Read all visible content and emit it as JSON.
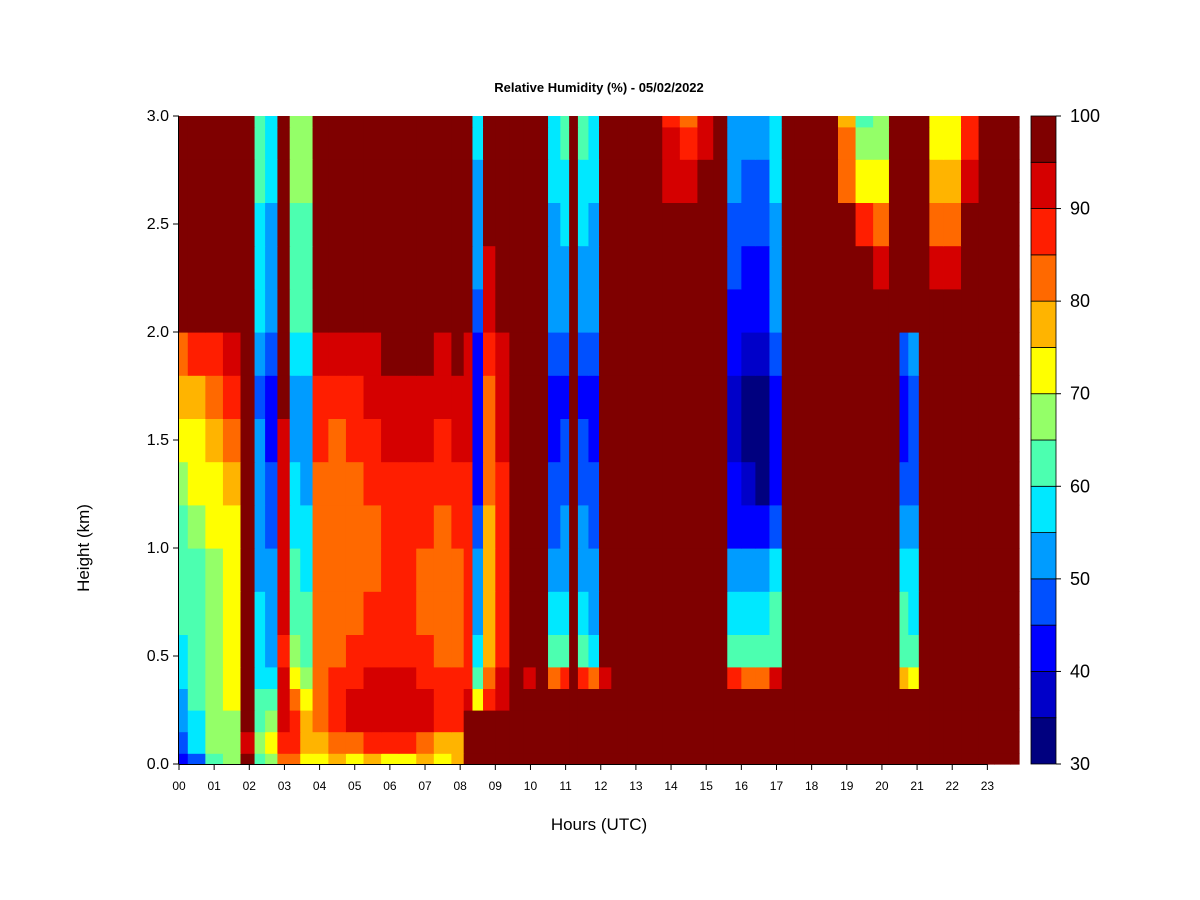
{
  "chart_data": {
    "type": "heatmap",
    "title": "Relative Humidity (%) - 05/02/2022",
    "xlabel": "Hours (UTC)",
    "ylabel": "Height (km)",
    "xlim": [
      0,
      23.9
    ],
    "ylim": [
      0,
      3.0
    ],
    "x_ticks": [
      0,
      1,
      2,
      3,
      4,
      5,
      6,
      7,
      8,
      9,
      10,
      11,
      12,
      13,
      14,
      15,
      16,
      17,
      18,
      19,
      20,
      21,
      22,
      23
    ],
    "x_tick_labels": [
      "00",
      "01",
      "02",
      "03",
      "04",
      "05",
      "06",
      "07",
      "08",
      "09",
      "10",
      "11",
      "12",
      "13",
      "14",
      "15",
      "16",
      "17",
      "18",
      "19",
      "20",
      "21",
      "22",
      "23"
    ],
    "y_ticks": [
      0.0,
      0.5,
      1.0,
      1.5,
      2.0,
      2.5,
      3.0
    ],
    "y_tick_labels": [
      "0.0",
      "0.5",
      "1.0",
      "1.5",
      "2.0",
      "2.5",
      "3.0"
    ],
    "grid": false,
    "colorbar": {
      "position": "right",
      "levels": [
        30,
        35,
        40,
        45,
        50,
        55,
        60,
        65,
        70,
        75,
        80,
        85,
        90,
        95,
        100
      ],
      "tick_values": [
        30,
        40,
        50,
        60,
        70,
        80,
        90,
        100
      ],
      "tick_labels": [
        "30",
        "40",
        "50",
        "60",
        "70",
        "80",
        "90",
        "100"
      ],
      "colors": [
        "#00007f",
        "#0000c9",
        "#0000ff",
        "#0050ff",
        "#009cff",
        "#00e8ff",
        "#4cffb0",
        "#94ff68",
        "#ffff00",
        "#ffb400",
        "#ff6900",
        "#ff1e00",
        "#d50000",
        "#7f0000"
      ]
    },
    "x_hours": [
      0.0,
      0.5,
      1.0,
      1.5,
      2.0,
      2.3,
      2.6,
      3.0,
      3.3,
      3.6,
      4.0,
      4.5,
      5.0,
      5.5,
      6.0,
      6.5,
      7.0,
      7.5,
      8.0,
      8.2,
      8.5,
      8.8,
      9.2,
      9.6,
      10.0,
      10.3,
      10.7,
      11.0,
      11.2,
      11.5,
      11.8,
      12.1,
      12.5,
      13.0,
      13.5,
      14.0,
      14.5,
      15.0,
      15.4,
      15.8,
      16.2,
      16.6,
      17.0,
      17.3,
      17.7,
      18.0,
      18.5,
      19.0,
      19.5,
      20.0,
      20.4,
      20.6,
      20.9,
      21.2,
      21.5,
      22.0,
      22.5,
      23.0,
      23.4,
      23.9
    ],
    "heights_km": [
      0.0,
      0.1,
      0.2,
      0.3,
      0.4,
      0.5,
      0.7,
      0.9,
      1.1,
      1.3,
      1.5,
      1.7,
      1.9,
      2.1,
      2.3,
      2.5,
      2.7,
      2.9,
      3.0
    ],
    "rh_percent_by_height": [
      [
        42,
        48,
        60,
        65,
        96,
        62,
        66,
        84,
        80,
        72,
        70,
        76,
        74,
        76,
        74,
        74,
        76,
        72,
        76,
        98,
        96,
        97,
        98,
        97,
        96,
        98,
        98,
        98,
        98,
        98,
        98,
        98,
        98,
        98,
        98,
        97,
        98,
        98,
        98,
        98,
        98,
        98,
        98,
        98,
        98,
        98,
        98,
        98,
        98,
        98,
        98,
        98,
        98,
        98,
        98,
        98,
        98,
        98,
        98,
        98
      ],
      [
        48,
        56,
        66,
        68,
        93,
        66,
        72,
        88,
        85,
        75,
        75,
        82,
        84,
        86,
        86,
        86,
        84,
        78,
        78,
        98,
        98,
        99,
        99,
        98,
        98,
        99,
        99,
        99,
        99,
        99,
        99,
        99,
        99,
        99,
        99,
        99,
        99,
        99,
        99,
        99,
        99,
        99,
        99,
        99,
        99,
        99,
        99,
        99,
        99,
        99,
        99,
        99,
        99,
        99,
        99,
        99,
        99,
        99,
        99,
        99
      ],
      [
        52,
        58,
        66,
        68,
        95,
        62,
        68,
        92,
        86,
        79,
        83,
        88,
        90,
        92,
        92,
        92,
        90,
        85,
        86,
        98,
        97,
        98,
        99,
        99,
        98,
        99,
        99,
        99,
        99,
        99,
        99,
        99,
        99,
        99,
        99,
        99,
        99,
        99,
        99,
        99,
        99,
        99,
        99,
        99,
        99,
        99,
        99,
        99,
        99,
        99,
        99,
        99,
        99,
        99,
        99,
        99,
        99,
        99,
        99,
        99
      ],
      [
        54,
        60,
        66,
        70,
        96,
        60,
        62,
        92,
        82,
        72,
        80,
        88,
        90,
        92,
        92,
        92,
        90,
        88,
        86,
        90,
        72,
        88,
        92,
        98,
        96,
        99,
        99,
        99,
        99,
        99,
        99,
        99,
        99,
        99,
        99,
        99,
        99,
        99,
        99,
        99,
        99,
        99,
        99,
        99,
        99,
        99,
        99,
        99,
        99,
        99,
        99,
        99,
        99,
        99,
        99,
        99,
        99,
        99,
        99,
        99
      ],
      [
        56,
        62,
        66,
        70,
        96,
        58,
        56,
        90,
        74,
        66,
        82,
        86,
        88,
        90,
        90,
        90,
        88,
        86,
        86,
        88,
        62,
        82,
        90,
        96,
        94,
        98,
        84,
        86,
        98,
        86,
        80,
        94,
        98,
        99,
        99,
        99,
        99,
        99,
        99,
        88,
        84,
        84,
        90,
        99,
        99,
        99,
        99,
        99,
        99,
        99,
        99,
        78,
        72,
        99,
        99,
        99,
        99,
        99,
        99,
        99
      ],
      [
        58,
        62,
        66,
        72,
        96,
        56,
        54,
        88,
        68,
        62,
        82,
        84,
        86,
        88,
        88,
        88,
        86,
        84,
        84,
        86,
        58,
        78,
        88,
        96,
        96,
        98,
        60,
        62,
        98,
        62,
        58,
        96,
        98,
        99,
        99,
        99,
        99,
        99,
        99,
        62,
        60,
        60,
        62,
        99,
        99,
        99,
        99,
        99,
        99,
        99,
        99,
        62,
        60,
        99,
        99,
        99,
        99,
        99,
        99,
        99
      ],
      [
        60,
        62,
        66,
        72,
        96,
        55,
        52,
        90,
        64,
        60,
        82,
        82,
        84,
        86,
        86,
        86,
        84,
        82,
        84,
        86,
        54,
        76,
        88,
        96,
        96,
        98,
        55,
        56,
        98,
        56,
        54,
        96,
        98,
        99,
        99,
        99,
        99,
        99,
        99,
        58,
        58,
        58,
        60,
        99,
        99,
        99,
        99,
        99,
        99,
        99,
        99,
        60,
        58,
        99,
        99,
        99,
        99,
        99,
        99,
        99
      ],
      [
        62,
        64,
        66,
        72,
        96,
        54,
        50,
        90,
        60,
        58,
        82,
        80,
        82,
        84,
        86,
        86,
        84,
        82,
        84,
        86,
        50,
        76,
        88,
        96,
        96,
        98,
        52,
        54,
        98,
        54,
        52,
        96,
        98,
        99,
        99,
        99,
        99,
        99,
        99,
        54,
        52,
        52,
        56,
        99,
        99,
        99,
        99,
        99,
        99,
        99,
        99,
        58,
        56,
        99,
        99,
        99,
        99,
        99,
        99,
        99
      ],
      [
        64,
        66,
        70,
        74,
        96,
        52,
        48,
        92,
        58,
        56,
        82,
        80,
        82,
        84,
        86,
        86,
        86,
        84,
        86,
        86,
        46,
        78,
        88,
        96,
        96,
        98,
        48,
        50,
        98,
        50,
        48,
        96,
        98,
        99,
        99,
        99,
        99,
        99,
        99,
        44,
        42,
        40,
        48,
        99,
        99,
        99,
        99,
        99,
        99,
        99,
        99,
        50,
        52,
        99,
        99,
        99,
        99,
        99,
        99,
        99
      ],
      [
        68,
        70,
        74,
        78,
        96,
        50,
        46,
        92,
        56,
        54,
        84,
        82,
        84,
        86,
        88,
        88,
        88,
        86,
        88,
        88,
        44,
        80,
        88,
        96,
        96,
        98,
        46,
        48,
        98,
        48,
        46,
        96,
        98,
        99,
        99,
        99,
        99,
        99,
        99,
        40,
        36,
        34,
        44,
        99,
        99,
        99,
        99,
        99,
        99,
        99,
        99,
        46,
        48,
        99,
        99,
        99,
        99,
        99,
        99,
        99
      ],
      [
        72,
        74,
        78,
        82,
        96,
        50,
        44,
        94,
        54,
        52,
        86,
        84,
        86,
        88,
        90,
        90,
        90,
        88,
        90,
        90,
        42,
        82,
        90,
        96,
        96,
        98,
        44,
        46,
        98,
        46,
        44,
        96,
        98,
        99,
        99,
        99,
        99,
        99,
        99,
        38,
        34,
        32,
        42,
        99,
        99,
        99,
        99,
        99,
        99,
        99,
        99,
        44,
        46,
        99,
        99,
        99,
        99,
        99,
        99,
        99
      ],
      [
        76,
        78,
        82,
        86,
        96,
        48,
        42,
        96,
        52,
        52,
        88,
        86,
        88,
        90,
        92,
        92,
        92,
        90,
        92,
        92,
        40,
        84,
        92,
        96,
        96,
        98,
        42,
        44,
        98,
        44,
        42,
        96,
        98,
        99,
        99,
        99,
        99,
        99,
        99,
        36,
        34,
        34,
        42,
        99,
        99,
        99,
        99,
        99,
        99,
        99,
        99,
        42,
        46,
        99,
        99,
        99,
        99,
        99,
        99,
        99
      ],
      [
        84,
        86,
        88,
        90,
        97,
        52,
        46,
        98,
        56,
        56,
        92,
        90,
        92,
        94,
        96,
        96,
        96,
        94,
        96,
        94,
        44,
        88,
        94,
        97,
        97,
        99,
        46,
        48,
        99,
        48,
        46,
        98,
        99,
        99,
        99,
        99,
        99,
        99,
        99,
        40,
        38,
        38,
        46,
        99,
        99,
        99,
        99,
        99,
        99,
        99,
        99,
        48,
        50,
        99,
        99,
        99,
        99,
        99,
        99,
        99
      ],
      [
        96,
        97,
        98,
        98,
        99,
        56,
        50,
        99,
        60,
        60,
        99,
        99,
        99,
        99,
        99,
        99,
        99,
        99,
        99,
        98,
        48,
        92,
        96,
        98,
        98,
        99,
        50,
        52,
        99,
        52,
        50,
        99,
        99,
        99,
        99,
        99,
        99,
        99,
        99,
        44,
        42,
        42,
        50,
        99,
        99,
        99,
        99,
        99,
        99,
        99,
        99,
        99,
        99,
        99,
        99,
        99,
        99,
        99,
        99,
        99
      ],
      [
        99,
        99,
        99,
        99,
        99,
        58,
        52,
        99,
        62,
        62,
        99,
        99,
        99,
        99,
        99,
        99,
        99,
        99,
        99,
        98,
        50,
        94,
        97,
        98,
        98,
        99,
        52,
        54,
        99,
        54,
        52,
        99,
        99,
        99,
        99,
        99,
        99,
        99,
        99,
        46,
        44,
        44,
        52,
        99,
        99,
        99,
        99,
        99,
        96,
        90,
        99,
        99,
        99,
        99,
        92,
        90,
        99,
        99,
        99,
        99
      ],
      [
        99,
        99,
        99,
        99,
        99,
        58,
        54,
        99,
        64,
        64,
        99,
        99,
        99,
        99,
        99,
        99,
        99,
        99,
        99,
        98,
        52,
        95,
        98,
        98,
        98,
        99,
        54,
        56,
        99,
        56,
        54,
        99,
        99,
        99,
        99,
        99,
        99,
        99,
        99,
        48,
        46,
        46,
        54,
        99,
        99,
        99,
        99,
        99,
        88,
        82,
        99,
        99,
        99,
        99,
        84,
        82,
        99,
        99,
        99,
        99
      ],
      [
        99,
        99,
        99,
        99,
        99,
        60,
        56,
        99,
        66,
        66,
        99,
        99,
        99,
        99,
        99,
        99,
        99,
        99,
        99,
        98,
        54,
        96,
        98,
        99,
        98,
        99,
        56,
        58,
        99,
        58,
        56,
        99,
        99,
        99,
        99,
        94,
        90,
        96,
        99,
        50,
        48,
        48,
        56,
        99,
        99,
        99,
        99,
        84,
        74,
        72,
        99,
        99,
        99,
        99,
        78,
        76,
        90,
        99,
        99,
        99
      ],
      [
        99,
        99,
        99,
        99,
        99,
        62,
        58,
        99,
        68,
        68,
        99,
        99,
        99,
        99,
        99,
        99,
        99,
        99,
        99,
        98,
        56,
        97,
        98,
        99,
        98,
        99,
        58,
        60,
        99,
        60,
        58,
        99,
        99,
        99,
        99,
        90,
        86,
        94,
        99,
        52,
        50,
        50,
        58,
        99,
        99,
        99,
        99,
        80,
        66,
        68,
        99,
        99,
        99,
        99,
        74,
        74,
        88,
        99,
        99,
        99
      ],
      [
        99,
        99,
        99,
        99,
        99,
        62,
        58,
        99,
        68,
        68,
        99,
        99,
        99,
        99,
        99,
        99,
        99,
        99,
        99,
        98,
        56,
        97,
        98,
        99,
        98,
        99,
        58,
        60,
        99,
        60,
        58,
        99,
        99,
        99,
        99,
        88,
        84,
        92,
        99,
        52,
        50,
        50,
        58,
        99,
        99,
        99,
        99,
        78,
        64,
        66,
        99,
        99,
        99,
        99,
        72,
        72,
        86,
        99,
        99,
        99
      ]
    ]
  }
}
